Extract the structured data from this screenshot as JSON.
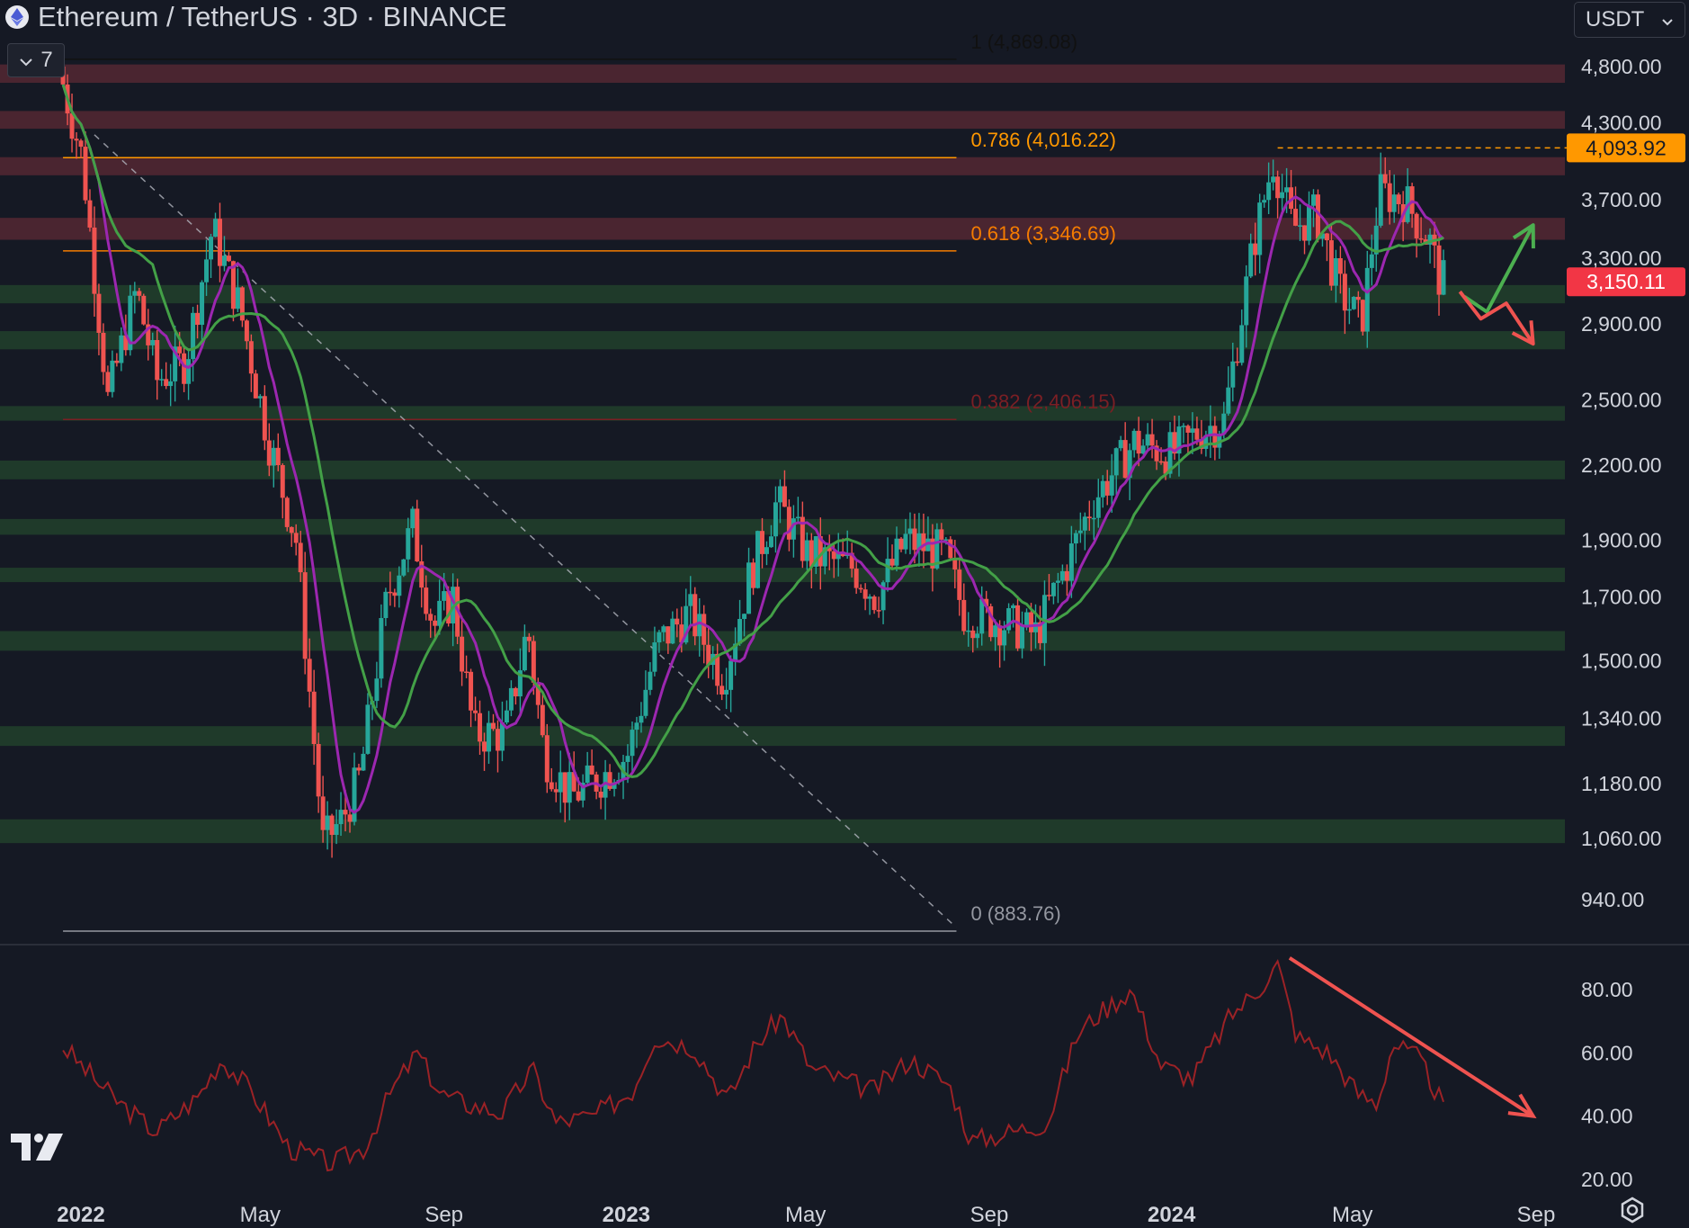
{
  "header": {
    "title": "Ethereum / TetherUS · 3D · BINANCE",
    "indicator_count": "7",
    "currency": "USDT",
    "logo_icon": "ethereum-icon",
    "collapse_icon": "chevron-down-icon",
    "currency_icon": "chevron-down-icon"
  },
  "colors": {
    "background": "#151924",
    "up_candle": "#26a69a",
    "down_candle": "#ef5350",
    "ma_fast": "#9c27b0",
    "ma_slow": "#43a047",
    "resistance_zone": "#4a2530",
    "support_zone": "#1f3a2a",
    "rsi_line": "#9b2226",
    "trendline": "#b2b5be"
  },
  "chart_data": {
    "type": "candlestick",
    "title": "Ethereum / TetherUS · 3D · BINANCE",
    "scale": "log",
    "x_axis_ticks": [
      "2022",
      "May",
      "Sep",
      "2023",
      "May",
      "Sep",
      "2024",
      "May",
      "Sep"
    ],
    "x_axis_dates": [
      "2022-01-01",
      "2022-05-01",
      "2022-09-01",
      "2023-01-01",
      "2023-05-01",
      "2023-09-01",
      "2024-01-01",
      "2024-05-01",
      "2024-09-01"
    ],
    "y_axis_ticks": [
      "4,800.00",
      "4,300.00",
      "3,700.00",
      "3,300.00",
      "2,900.00",
      "2,500.00",
      "2,200.00",
      "1,900.00",
      "1,700.00",
      "1,500.00",
      "1,340.00",
      "1,180.00",
      "1,060.00",
      "940.00"
    ],
    "y_axis_values": [
      4800,
      4300,
      3700,
      3300,
      2900,
      2500,
      2200,
      1900,
      1700,
      1500,
      1340,
      1180,
      1060,
      940
    ],
    "ylim": [
      880,
      5000
    ],
    "price_path": [
      {
        "date": "2021-12-20",
        "price": 4800
      },
      {
        "date": "2022-01-05",
        "price": 4000
      },
      {
        "date": "2022-01-22",
        "price": 2500
      },
      {
        "date": "2022-02-10",
        "price": 3100
      },
      {
        "date": "2022-02-24",
        "price": 2600
      },
      {
        "date": "2022-03-15",
        "price": 2700
      },
      {
        "date": "2022-04-02",
        "price": 3500
      },
      {
        "date": "2022-04-20",
        "price": 3000
      },
      {
        "date": "2022-05-10",
        "price": 2300
      },
      {
        "date": "2022-05-28",
        "price": 1900
      },
      {
        "date": "2022-06-15",
        "price": 1050
      },
      {
        "date": "2022-06-28",
        "price": 1100
      },
      {
        "date": "2022-07-10",
        "price": 1200
      },
      {
        "date": "2022-07-28",
        "price": 1700
      },
      {
        "date": "2022-08-14",
        "price": 1950
      },
      {
        "date": "2022-08-28",
        "price": 1600
      },
      {
        "date": "2022-09-10",
        "price": 1700
      },
      {
        "date": "2022-09-24",
        "price": 1300
      },
      {
        "date": "2022-10-15",
        "price": 1300
      },
      {
        "date": "2022-10-30",
        "price": 1600
      },
      {
        "date": "2022-11-10",
        "price": 1250
      },
      {
        "date": "2022-11-28",
        "price": 1150
      },
      {
        "date": "2022-12-20",
        "price": 1200
      },
      {
        "date": "2023-01-05",
        "price": 1250
      },
      {
        "date": "2023-01-25",
        "price": 1550
      },
      {
        "date": "2023-02-15",
        "price": 1650
      },
      {
        "date": "2023-03-10",
        "price": 1450
      },
      {
        "date": "2023-03-28",
        "price": 1780
      },
      {
        "date": "2023-04-15",
        "price": 2050
      },
      {
        "date": "2023-05-05",
        "price": 1850
      },
      {
        "date": "2023-06-05",
        "price": 1800
      },
      {
        "date": "2023-06-20",
        "price": 1700
      },
      {
        "date": "2023-07-10",
        "price": 1900
      },
      {
        "date": "2023-08-05",
        "price": 1850
      },
      {
        "date": "2023-08-18",
        "price": 1650
      },
      {
        "date": "2023-09-10",
        "price": 1620
      },
      {
        "date": "2023-10-05",
        "price": 1580
      },
      {
        "date": "2023-10-25",
        "price": 1800
      },
      {
        "date": "2023-11-12",
        "price": 2050
      },
      {
        "date": "2023-12-10",
        "price": 2300
      },
      {
        "date": "2024-01-05",
        "price": 2250
      },
      {
        "date": "2024-01-22",
        "price": 2350
      },
      {
        "date": "2024-02-08",
        "price": 2400
      },
      {
        "date": "2024-02-28",
        "price": 3400
      },
      {
        "date": "2024-03-12",
        "price": 4000
      },
      {
        "date": "2024-03-25",
        "price": 3500
      },
      {
        "date": "2024-04-10",
        "price": 3600
      },
      {
        "date": "2024-04-25",
        "price": 3100
      },
      {
        "date": "2024-05-10",
        "price": 2900
      },
      {
        "date": "2024-05-22",
        "price": 3750
      },
      {
        "date": "2024-06-08",
        "price": 3700
      },
      {
        "date": "2024-06-25",
        "price": 3400
      },
      {
        "date": "2024-07-02",
        "price": 3150
      }
    ],
    "fib_levels": [
      {
        "ratio": "1",
        "value": 4869.08,
        "label": "1 (4,869.08)",
        "color": "#111111"
      },
      {
        "ratio": "0.786",
        "value": 4016.22,
        "label": "0.786 (4,016.22)",
        "color": "#ff9800"
      },
      {
        "ratio": "0.618",
        "value": 3346.69,
        "label": "0.618 (3,346.69)",
        "color": "#f57c00"
      },
      {
        "ratio": "0.382",
        "value": 2406.15,
        "label": "0.382 (2,406.15)",
        "color": "#7b1f24"
      },
      {
        "ratio": "0",
        "value": 883.76,
        "label": "0 (883.76)",
        "color": "#9598a1"
      }
    ],
    "fib_start_date": "2021-12-20",
    "fib_end_date": "2023-08-10",
    "resistance_zones": [
      [
        4650,
        4820
      ],
      [
        4250,
        4400
      ],
      [
        3880,
        4020
      ],
      [
        3420,
        3570
      ]
    ],
    "support_zones": [
      [
        3020,
        3130
      ],
      [
        2760,
        2860
      ],
      [
        2400,
        2470
      ],
      [
        2140,
        2220
      ],
      [
        1920,
        1980
      ],
      [
        1750,
        1800
      ],
      [
        1530,
        1590
      ],
      [
        1270,
        1320
      ],
      [
        1050,
        1100
      ]
    ],
    "trendline": {
      "from": {
        "date": "2022-01-10",
        "price": 4200
      },
      "to": {
        "date": "2023-08-10",
        "price": 890
      }
    },
    "last_price": "3,150.11",
    "last_price_value": 3150.11,
    "high_marker": "4,093.92",
    "high_marker_value": 4093.92,
    "high_marker_date": "2024-03-12",
    "scenario_up": {
      "points": [
        {
          "date": "2024-07-15",
          "price": 3060
        },
        {
          "date": "2024-07-30",
          "price": 2970
        },
        {
          "date": "2024-08-30",
          "price": 3520
        }
      ]
    },
    "scenario_down": {
      "points": [
        {
          "date": "2024-07-12",
          "price": 3090
        },
        {
          "date": "2024-07-26",
          "price": 2930
        },
        {
          "date": "2024-08-12",
          "price": 3020
        },
        {
          "date": "2024-08-30",
          "price": 2790
        }
      ]
    },
    "rsi": {
      "y_axis_ticks": [
        "80.00",
        "60.00",
        "40.00",
        "20.00"
      ],
      "y_axis_values": [
        80,
        60,
        40,
        20
      ],
      "ylim": [
        17,
        91
      ],
      "path": [
        {
          "date": "2021-12-20",
          "value": 62
        },
        {
          "date": "2022-01-22",
          "value": 46
        },
        {
          "date": "2022-02-20",
          "value": 35
        },
        {
          "date": "2022-03-20",
          "value": 46
        },
        {
          "date": "2022-04-05",
          "value": 58
        },
        {
          "date": "2022-04-25",
          "value": 48
        },
        {
          "date": "2022-05-20",
          "value": 30
        },
        {
          "date": "2022-06-18",
          "value": 25
        },
        {
          "date": "2022-07-10",
          "value": 30
        },
        {
          "date": "2022-07-28",
          "value": 48
        },
        {
          "date": "2022-08-14",
          "value": 60
        },
        {
          "date": "2022-08-30",
          "value": 47
        },
        {
          "date": "2022-09-15",
          "value": 44
        },
        {
          "date": "2022-10-10",
          "value": 41
        },
        {
          "date": "2022-10-30",
          "value": 55
        },
        {
          "date": "2022-11-15",
          "value": 38
        },
        {
          "date": "2022-12-10",
          "value": 40
        },
        {
          "date": "2023-01-05",
          "value": 48
        },
        {
          "date": "2023-01-20",
          "value": 65
        },
        {
          "date": "2023-02-15",
          "value": 62
        },
        {
          "date": "2023-03-10",
          "value": 45
        },
        {
          "date": "2023-03-28",
          "value": 62
        },
        {
          "date": "2023-04-15",
          "value": 72
        },
        {
          "date": "2023-05-05",
          "value": 55
        },
        {
          "date": "2023-06-15",
          "value": 48
        },
        {
          "date": "2023-07-10",
          "value": 58
        },
        {
          "date": "2023-08-05",
          "value": 50
        },
        {
          "date": "2023-08-20",
          "value": 32
        },
        {
          "date": "2023-09-15",
          "value": 35
        },
        {
          "date": "2023-10-10",
          "value": 38
        },
        {
          "date": "2023-10-30",
          "value": 66
        },
        {
          "date": "2023-11-12",
          "value": 72
        },
        {
          "date": "2023-12-05",
          "value": 80
        },
        {
          "date": "2023-12-25",
          "value": 56
        },
        {
          "date": "2024-01-15",
          "value": 52
        },
        {
          "date": "2024-02-10",
          "value": 72
        },
        {
          "date": "2024-02-28",
          "value": 80
        },
        {
          "date": "2024-03-12",
          "value": 88
        },
        {
          "date": "2024-03-25",
          "value": 65
        },
        {
          "date": "2024-04-15",
          "value": 60
        },
        {
          "date": "2024-05-05",
          "value": 47
        },
        {
          "date": "2024-05-18",
          "value": 44
        },
        {
          "date": "2024-05-28",
          "value": 63
        },
        {
          "date": "2024-06-15",
          "value": 58
        },
        {
          "date": "2024-07-02",
          "value": 42
        }
      ],
      "trend_arrow": {
        "from": {
          "date": "2024-03-20",
          "value": 90
        },
        "to": {
          "date": "2024-08-30",
          "value": 40
        }
      }
    }
  }
}
